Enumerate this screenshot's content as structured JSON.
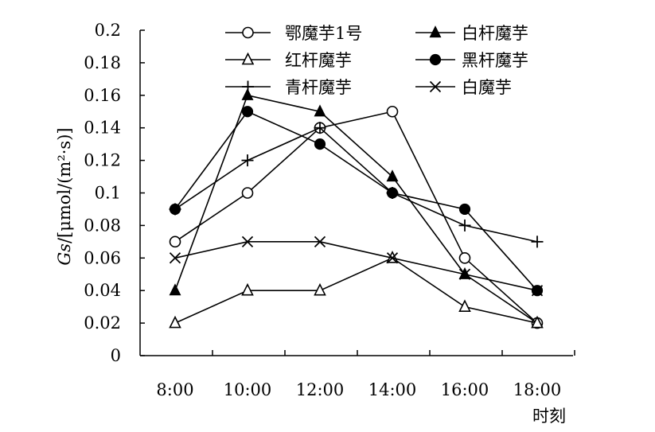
{
  "chart_data": {
    "type": "line",
    "title": "",
    "xlabel": "时刻",
    "ylabel_italic": "Gs",
    "ylabel_unit": "/[μmol/(m²·s)]",
    "categories": [
      "8:00",
      "10:00",
      "12:00",
      "14:00",
      "16:00",
      "18:00"
    ],
    "ylim": [
      0,
      0.2
    ],
    "yticks": [
      "0",
      "0.02",
      "0.04",
      "0.06",
      "0.08",
      "0.1",
      "0.12",
      "0.14",
      "0.16",
      "0.18",
      "0.2"
    ],
    "grid": false,
    "legend_position": "top",
    "series": [
      {
        "name": "鄂魔芋1号",
        "marker": "open-circle",
        "values": [
          0.07,
          0.1,
          0.14,
          0.15,
          0.06,
          0.02
        ]
      },
      {
        "name": "白杆魔芋",
        "marker": "filled-triangle",
        "values": [
          0.04,
          0.16,
          0.15,
          0.11,
          0.05,
          0.02
        ]
      },
      {
        "name": "红杆魔芋",
        "marker": "open-triangle",
        "values": [
          0.02,
          0.04,
          0.04,
          0.06,
          0.03,
          0.02
        ]
      },
      {
        "name": "黑杆魔芋",
        "marker": "filled-circle",
        "values": [
          0.09,
          0.15,
          0.13,
          0.1,
          0.09,
          0.04
        ]
      },
      {
        "name": "青杆魔芋",
        "marker": "plus",
        "values": [
          0.09,
          0.12,
          0.14,
          0.1,
          0.08,
          0.07
        ]
      },
      {
        "name": "白魔芋",
        "marker": "cross",
        "values": [
          0.06,
          0.07,
          0.07,
          0.06,
          0.05,
          0.04
        ]
      }
    ]
  }
}
